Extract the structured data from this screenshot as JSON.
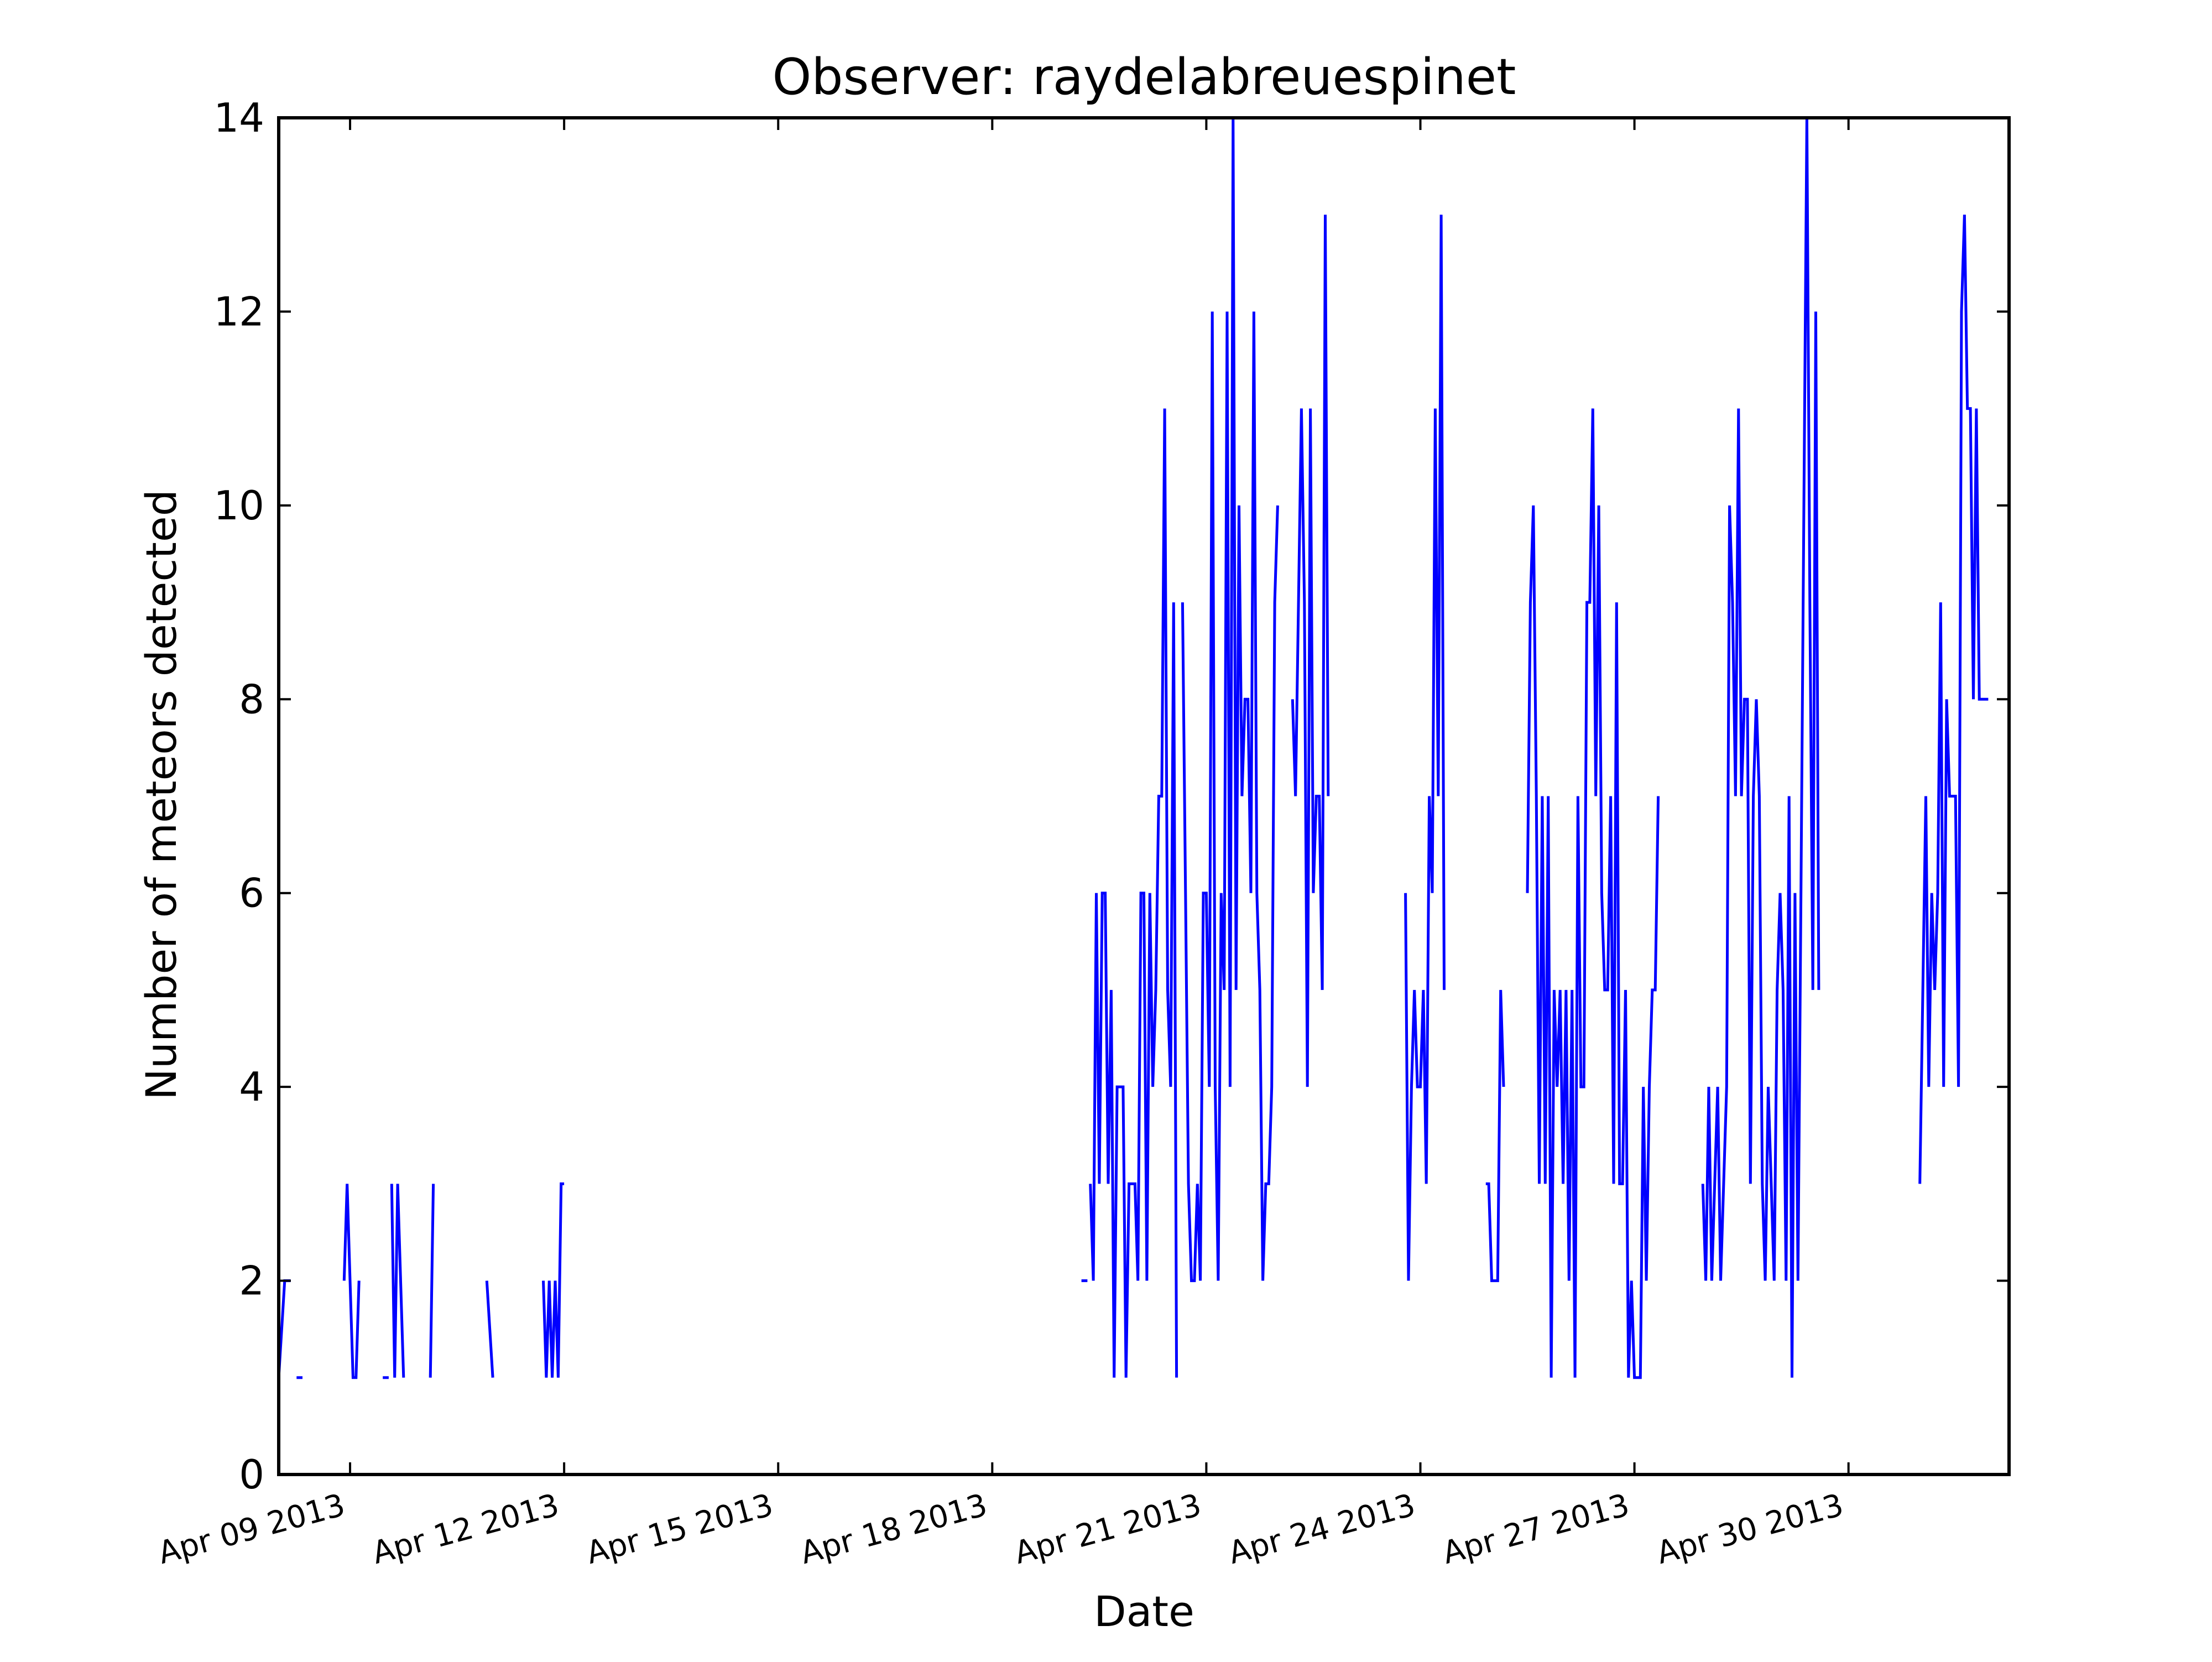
{
  "chart_data": {
    "type": "line",
    "title": "Observer: raydelabreuespinet",
    "xlabel": "Date",
    "ylabel": "Number of meteors detected",
    "ylim": [
      0,
      14
    ],
    "xlim": [
      "2013-04-08T00:00",
      "2013-05-02T06:00"
    ],
    "yticks": [
      0,
      2,
      4,
      6,
      8,
      10,
      12,
      14
    ],
    "xtick_labels": [
      "Apr 09 2013",
      "Apr 12 2013",
      "Apr 15 2013",
      "Apr 18 2013",
      "Apr 21 2013",
      "Apr 24 2013",
      "Apr 27 2013",
      "Apr 30 2013"
    ],
    "grid": false,
    "line_color": "#0000ff",
    "series": [
      {
        "segments": [
          [
            [
              "2013-04-08T00:00",
              1
            ],
            [
              "2013-04-08T02:00",
              2
            ],
            [
              "2013-04-08T04:00",
              2
            ]
          ],
          [
            [
              "2013-04-08T06:00",
              1
            ],
            [
              "2013-04-08T08:00",
              1
            ]
          ],
          [
            [
              "2013-04-08T22:00",
              2
            ],
            [
              "2013-04-08T23:00",
              3
            ],
            [
              "2013-04-09T00:00",
              2
            ],
            [
              "2013-04-09T01:00",
              1
            ],
            [
              "2013-04-09T02:00",
              1
            ],
            [
              "2013-04-09T03:00",
              2
            ]
          ],
          [
            [
              "2013-04-09T11:00",
              1
            ],
            [
              "2013-04-09T13:00",
              1
            ]
          ],
          [
            [
              "2013-04-09T14:00",
              3
            ],
            [
              "2013-04-09T15:00",
              1
            ],
            [
              "2013-04-09T16:00",
              3
            ],
            [
              "2013-04-09T18:00",
              1
            ]
          ],
          [
            [
              "2013-04-10T03:00",
              1
            ],
            [
              "2013-04-10T04:00",
              3
            ]
          ],
          [
            [
              "2013-04-10T22:00",
              2
            ],
            [
              "2013-04-11T00:00",
              1
            ]
          ],
          [
            [
              "2013-04-11T17:00",
              2
            ],
            [
              "2013-04-11T18:00",
              1
            ],
            [
              "2013-04-11T19:00",
              2
            ],
            [
              "2013-04-11T20:00",
              1
            ],
            [
              "2013-04-11T21:00",
              2
            ],
            [
              "2013-04-11T22:00",
              1
            ],
            [
              "2013-04-11T23:00",
              3
            ],
            [
              "2013-04-12T00:00",
              3
            ]
          ],
          [
            [
              "2013-04-19T06:00",
              2
            ],
            [
              "2013-04-19T08:00",
              2
            ]
          ],
          [
            [
              "2013-04-19T09:00",
              3
            ],
            [
              "2013-04-19T10:00",
              2
            ],
            [
              "2013-04-19T11:00",
              6
            ],
            [
              "2013-04-19T12:00",
              3
            ],
            [
              "2013-04-19T13:00",
              6
            ],
            [
              "2013-04-19T14:00",
              6
            ],
            [
              "2013-04-19T15:00",
              3
            ],
            [
              "2013-04-19T16:00",
              5
            ],
            [
              "2013-04-19T17:00",
              1
            ],
            [
              "2013-04-19T18:00",
              4
            ],
            [
              "2013-04-19T19:00",
              4
            ],
            [
              "2013-04-19T20:00",
              4
            ],
            [
              "2013-04-19T21:00",
              1
            ],
            [
              "2013-04-19T22:00",
              3
            ],
            [
              "2013-04-19T23:00",
              3
            ],
            [
              "2013-04-20T00:00",
              3
            ],
            [
              "2013-04-20T01:00",
              2
            ],
            [
              "2013-04-20T02:00",
              6
            ],
            [
              "2013-04-20T03:00",
              6
            ],
            [
              "2013-04-20T04:00",
              2
            ],
            [
              "2013-04-20T05:00",
              6
            ],
            [
              "2013-04-20T06:00",
              4
            ],
            [
              "2013-04-20T07:00",
              5
            ],
            [
              "2013-04-20T08:00",
              7
            ],
            [
              "2013-04-20T09:00",
              7
            ],
            [
              "2013-04-20T10:00",
              11
            ],
            [
              "2013-04-20T11:00",
              5
            ],
            [
              "2013-04-20T12:00",
              4
            ],
            [
              "2013-04-20T13:00",
              9
            ],
            [
              "2013-04-20T14:00",
              1
            ]
          ],
          [
            [
              "2013-04-20T16:00",
              9
            ],
            [
              "2013-04-20T17:00",
              6
            ],
            [
              "2013-04-20T18:00",
              3
            ],
            [
              "2013-04-20T19:00",
              2
            ],
            [
              "2013-04-20T20:00",
              2
            ],
            [
              "2013-04-20T21:00",
              3
            ],
            [
              "2013-04-20T22:00",
              2
            ],
            [
              "2013-04-20T23:00",
              6
            ],
            [
              "2013-04-21T00:00",
              6
            ],
            [
              "2013-04-21T01:00",
              4
            ],
            [
              "2013-04-21T02:00",
              12
            ],
            [
              "2013-04-21T03:00",
              4
            ],
            [
              "2013-04-21T04:00",
              2
            ],
            [
              "2013-04-21T05:00",
              6
            ],
            [
              "2013-04-21T06:00",
              5
            ],
            [
              "2013-04-21T07:00",
              12
            ],
            [
              "2013-04-21T08:00",
              4
            ],
            [
              "2013-04-21T09:00",
              14
            ],
            [
              "2013-04-21T10:00",
              5
            ],
            [
              "2013-04-21T11:00",
              10
            ],
            [
              "2013-04-21T12:00",
              7
            ],
            [
              "2013-04-21T13:00",
              8
            ],
            [
              "2013-04-21T14:00",
              8
            ],
            [
              "2013-04-21T15:00",
              6
            ],
            [
              "2013-04-21T16:00",
              12
            ],
            [
              "2013-04-21T17:00",
              6
            ],
            [
              "2013-04-21T18:00",
              5
            ],
            [
              "2013-04-21T19:00",
              2
            ],
            [
              "2013-04-21T20:00",
              3
            ],
            [
              "2013-04-21T21:00",
              3
            ],
            [
              "2013-04-21T22:00",
              4
            ],
            [
              "2013-04-21T23:00",
              9
            ],
            [
              "2013-04-22T00:00",
              10
            ]
          ],
          [
            [
              "2013-04-22T05:00",
              8
            ],
            [
              "2013-04-22T06:00",
              7
            ],
            [
              "2013-04-22T07:00",
              9
            ],
            [
              "2013-04-22T08:00",
              11
            ],
            [
              "2013-04-22T09:00",
              9
            ],
            [
              "2013-04-22T10:00",
              4
            ],
            [
              "2013-04-22T11:00",
              11
            ],
            [
              "2013-04-22T12:00",
              6
            ],
            [
              "2013-04-22T13:00",
              7
            ],
            [
              "2013-04-22T14:00",
              7
            ],
            [
              "2013-04-22T15:00",
              5
            ],
            [
              "2013-04-22T16:00",
              13
            ],
            [
              "2013-04-22T17:00",
              7
            ]
          ],
          [
            [
              "2013-04-23T19:00",
              6
            ],
            [
              "2013-04-23T20:00",
              2
            ],
            [
              "2013-04-23T21:00",
              4
            ],
            [
              "2013-04-23T22:00",
              5
            ],
            [
              "2013-04-23T23:00",
              4
            ],
            [
              "2013-04-24T00:00",
              4
            ],
            [
              "2013-04-24T01:00",
              5
            ],
            [
              "2013-04-24T02:00",
              3
            ],
            [
              "2013-04-24T03:00",
              7
            ],
            [
              "2013-04-24T04:00",
              6
            ],
            [
              "2013-04-24T05:00",
              11
            ],
            [
              "2013-04-24T06:00",
              7
            ],
            [
              "2013-04-24T07:00",
              13
            ],
            [
              "2013-04-24T08:00",
              5
            ]
          ],
          [
            [
              "2013-04-24T22:00",
              3
            ],
            [
              "2013-04-24T23:00",
              3
            ],
            [
              "2013-04-25T00:00",
              2
            ],
            [
              "2013-04-25T01:00",
              2
            ],
            [
              "2013-04-25T02:00",
              2
            ],
            [
              "2013-04-25T03:00",
              5
            ],
            [
              "2013-04-25T04:00",
              4
            ]
          ],
          [
            [
              "2013-04-25T12:00",
              6
            ],
            [
              "2013-04-25T13:00",
              9
            ],
            [
              "2013-04-25T14:00",
              10
            ],
            [
              "2013-04-25T15:00",
              7
            ],
            [
              "2013-04-25T16:00",
              3
            ],
            [
              "2013-04-25T17:00",
              7
            ],
            [
              "2013-04-25T18:00",
              3
            ],
            [
              "2013-04-25T19:00",
              7
            ],
            [
              "2013-04-25T20:00",
              1
            ],
            [
              "2013-04-25T21:00",
              5
            ],
            [
              "2013-04-25T22:00",
              4
            ],
            [
              "2013-04-25T23:00",
              5
            ],
            [
              "2013-04-26T00:00",
              3
            ],
            [
              "2013-04-26T01:00",
              5
            ],
            [
              "2013-04-26T02:00",
              2
            ],
            [
              "2013-04-26T03:00",
              5
            ],
            [
              "2013-04-26T04:00",
              1
            ],
            [
              "2013-04-26T05:00",
              7
            ],
            [
              "2013-04-26T06:00",
              4
            ],
            [
              "2013-04-26T07:00",
              4
            ],
            [
              "2013-04-26T08:00",
              9
            ],
            [
              "2013-04-26T09:00",
              9
            ],
            [
              "2013-04-26T10:00",
              11
            ],
            [
              "2013-04-26T11:00",
              7
            ],
            [
              "2013-04-26T12:00",
              10
            ],
            [
              "2013-04-26T13:00",
              6
            ],
            [
              "2013-04-26T14:00",
              5
            ],
            [
              "2013-04-26T15:00",
              5
            ],
            [
              "2013-04-26T16:00",
              7
            ],
            [
              "2013-04-26T17:00",
              3
            ],
            [
              "2013-04-26T18:00",
              9
            ],
            [
              "2013-04-26T19:00",
              3
            ],
            [
              "2013-04-26T20:00",
              3
            ],
            [
              "2013-04-26T21:00",
              5
            ],
            [
              "2013-04-26T22:00",
              1
            ],
            [
              "2013-04-26T23:00",
              2
            ],
            [
              "2013-04-27T00:00",
              1
            ],
            [
              "2013-04-27T01:00",
              1
            ],
            [
              "2013-04-27T02:00",
              1
            ],
            [
              "2013-04-27T03:00",
              4
            ],
            [
              "2013-04-27T04:00",
              2
            ],
            [
              "2013-04-27T05:00",
              4
            ],
            [
              "2013-04-27T06:00",
              5
            ],
            [
              "2013-04-27T07:00",
              5
            ],
            [
              "2013-04-27T08:00",
              7
            ]
          ],
          [
            [
              "2013-04-27T23:00",
              3
            ],
            [
              "2013-04-28T00:00",
              2
            ],
            [
              "2013-04-28T01:00",
              4
            ],
            [
              "2013-04-28T02:00",
              2
            ],
            [
              "2013-04-28T03:00",
              3
            ],
            [
              "2013-04-28T04:00",
              4
            ],
            [
              "2013-04-28T05:00",
              2
            ],
            [
              "2013-04-28T06:00",
              3
            ],
            [
              "2013-04-28T07:00",
              4
            ],
            [
              "2013-04-28T08:00",
              10
            ],
            [
              "2013-04-28T09:00",
              9
            ],
            [
              "2013-04-28T10:00",
              7
            ],
            [
              "2013-04-28T11:00",
              11
            ],
            [
              "2013-04-28T12:00",
              7
            ],
            [
              "2013-04-28T13:00",
              8
            ],
            [
              "2013-04-28T14:00",
              8
            ],
            [
              "2013-04-28T15:00",
              3
            ],
            [
              "2013-04-28T16:00",
              7
            ],
            [
              "2013-04-28T17:00",
              8
            ],
            [
              "2013-04-28T18:00",
              7
            ],
            [
              "2013-04-28T19:00",
              3
            ],
            [
              "2013-04-28T20:00",
              2
            ],
            [
              "2013-04-28T21:00",
              4
            ],
            [
              "2013-04-28T22:00",
              3
            ],
            [
              "2013-04-28T23:00",
              2
            ],
            [
              "2013-04-29T00:00",
              5
            ],
            [
              "2013-04-29T01:00",
              6
            ],
            [
              "2013-04-29T02:00",
              5
            ],
            [
              "2013-04-29T03:00",
              2
            ],
            [
              "2013-04-29T04:00",
              7
            ],
            [
              "2013-04-29T05:00",
              1
            ],
            [
              "2013-04-29T06:00",
              6
            ],
            [
              "2013-04-29T07:00",
              2
            ],
            [
              "2013-04-29T08:00",
              6
            ],
            [
              "2013-04-29T09:00",
              10
            ],
            [
              "2013-04-29T10:00",
              14
            ],
            [
              "2013-04-29T11:00",
              9
            ],
            [
              "2013-04-29T12:00",
              5
            ],
            [
              "2013-04-29T13:00",
              12
            ],
            [
              "2013-04-29T14:00",
              5
            ]
          ],
          [
            [
              "2013-05-01T00:00",
              3
            ],
            [
              "2013-05-01T01:00",
              5
            ],
            [
              "2013-05-01T02:00",
              7
            ],
            [
              "2013-05-01T03:00",
              4
            ],
            [
              "2013-05-01T04:00",
              6
            ],
            [
              "2013-05-01T05:00",
              5
            ],
            [
              "2013-05-01T06:00",
              6
            ],
            [
              "2013-05-01T07:00",
              9
            ],
            [
              "2013-05-01T08:00",
              4
            ],
            [
              "2013-05-01T09:00",
              8
            ],
            [
              "2013-05-01T10:00",
              7
            ],
            [
              "2013-05-01T11:00",
              7
            ],
            [
              "2013-05-01T12:00",
              7
            ],
            [
              "2013-05-01T13:00",
              4
            ],
            [
              "2013-05-01T14:00",
              12
            ],
            [
              "2013-05-01T15:00",
              13
            ],
            [
              "2013-05-01T16:00",
              11
            ],
            [
              "2013-05-01T17:00",
              11
            ],
            [
              "2013-05-01T18:00",
              8
            ],
            [
              "2013-05-01T19:00",
              11
            ],
            [
              "2013-05-01T20:00",
              8
            ],
            [
              "2013-05-01T21:00",
              8
            ],
            [
              "2013-05-01T22:00",
              8
            ],
            [
              "2013-05-01T23:00",
              8
            ]
          ]
        ]
      }
    ]
  }
}
